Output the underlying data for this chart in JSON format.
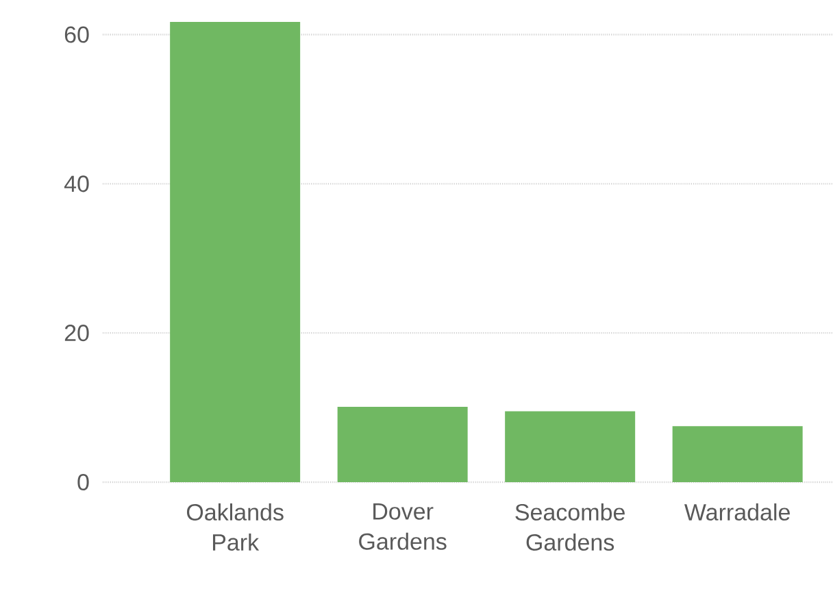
{
  "chart_data": {
    "type": "bar",
    "categories": [
      "Oaklands Park",
      "Dover Gardens",
      "Seacombe Gardens",
      "Warradale"
    ],
    "values": [
      61.7,
      10.1,
      9.5,
      7.5
    ],
    "color": "#70b862",
    "ylim": [
      0,
      61.7
    ],
    "yticks": [
      0,
      20,
      40,
      60
    ],
    "grid": "y"
  }
}
